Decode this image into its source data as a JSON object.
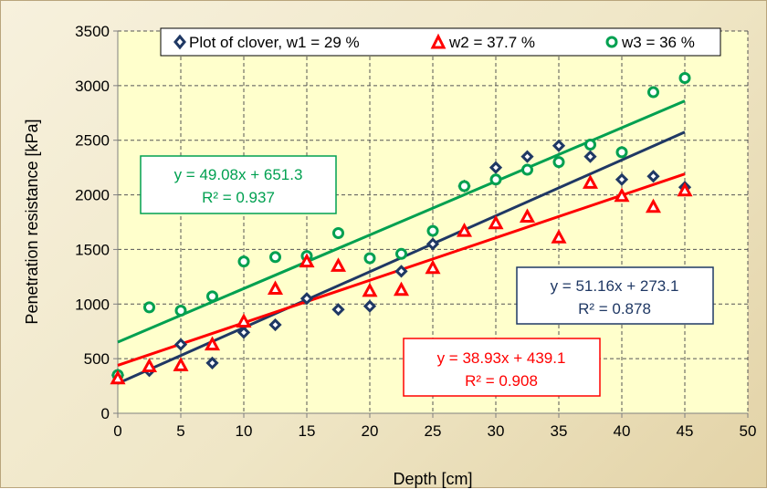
{
  "chart_data": {
    "type": "scatter",
    "xlabel": "Depth [cm]",
    "ylabel": "Penetration resistance [kPa]",
    "xlim": [
      0,
      50
    ],
    "ylim": [
      0,
      3500
    ],
    "xticks": [
      "0",
      "5",
      "10",
      "15",
      "20",
      "25",
      "30",
      "35",
      "40",
      "45",
      "50"
    ],
    "yticks": [
      "0",
      "500",
      "1000",
      "1500",
      "2000",
      "2500",
      "3000",
      "3500"
    ],
    "grid": true,
    "legend_position": "top",
    "series": [
      {
        "name": "Plot of clover, w1 = 29 %",
        "marker": "diamond",
        "color": "#1f3864",
        "points": [
          [
            0,
            350
          ],
          [
            2.5,
            390
          ],
          [
            5,
            630
          ],
          [
            7.5,
            460
          ],
          [
            10,
            740
          ],
          [
            12.5,
            810
          ],
          [
            15,
            1050
          ],
          [
            17.5,
            950
          ],
          [
            20,
            980
          ],
          [
            22.5,
            1300
          ],
          [
            25,
            1550
          ],
          [
            27.5,
            2080
          ],
          [
            30,
            2250
          ],
          [
            32.5,
            2350
          ],
          [
            35,
            2450
          ],
          [
            37.5,
            2350
          ],
          [
            40,
            2140
          ],
          [
            42.5,
            2170
          ],
          [
            45,
            2070
          ]
        ],
        "trendline": {
          "slope": 51.16,
          "intercept": 273.1,
          "equation": "y = 51.16x + 273.1",
          "r2": "R² = 0.878"
        }
      },
      {
        "name": "w2 = 37.7 %",
        "marker": "triangle",
        "color": "#ff0000",
        "points": [
          [
            0,
            320
          ],
          [
            2.5,
            430
          ],
          [
            5,
            440
          ],
          [
            7.5,
            630
          ],
          [
            10,
            840
          ],
          [
            12.5,
            1140
          ],
          [
            15,
            1390
          ],
          [
            17.5,
            1350
          ],
          [
            20,
            1120
          ],
          [
            22.5,
            1130
          ],
          [
            25,
            1330
          ],
          [
            27.5,
            1670
          ],
          [
            30,
            1740
          ],
          [
            32.5,
            1800
          ],
          [
            35,
            1610
          ],
          [
            37.5,
            2110
          ],
          [
            40,
            1990
          ],
          [
            42.5,
            1890
          ],
          [
            45,
            2040
          ]
        ],
        "trendline": {
          "slope": 38.93,
          "intercept": 439.1,
          "equation": "y = 38.93x + 439.1",
          "r2": "R² = 0.908"
        }
      },
      {
        "name": "w3 = 36 %",
        "marker": "circle",
        "color": "#00a050",
        "points": [
          [
            0,
            350
          ],
          [
            2.5,
            970
          ],
          [
            5,
            940
          ],
          [
            7.5,
            1070
          ],
          [
            10,
            1390
          ],
          [
            12.5,
            1430
          ],
          [
            15,
            1440
          ],
          [
            17.5,
            1650
          ],
          [
            20,
            1420
          ],
          [
            22.5,
            1460
          ],
          [
            25,
            1670
          ],
          [
            27.5,
            2080
          ],
          [
            30,
            2140
          ],
          [
            32.5,
            2230
          ],
          [
            35,
            2300
          ],
          [
            37.5,
            2460
          ],
          [
            40,
            2390
          ],
          [
            42.5,
            2940
          ],
          [
            45,
            3070
          ]
        ],
        "trendline": {
          "slope": 49.08,
          "intercept": 651.3,
          "equation": "y = 49.08x + 651.3",
          "r2": "R² = 0.937"
        }
      }
    ]
  }
}
